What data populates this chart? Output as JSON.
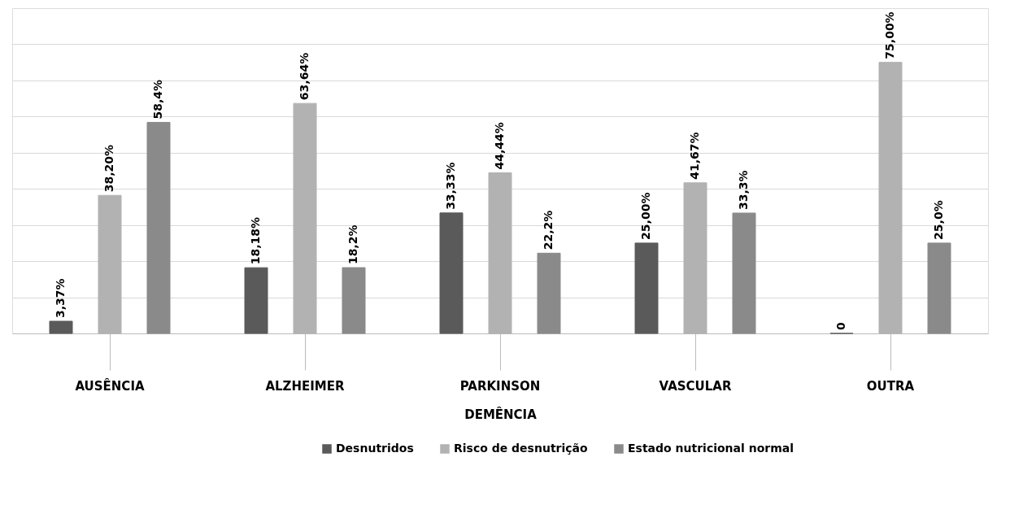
{
  "chart_data": {
    "type": "bar",
    "xlabel": "DEMÊNCIA",
    "categories": [
      "AUSÊNCIA",
      "ALZHEIMER",
      "PARKINSON",
      "VASCULAR",
      "OUTRA"
    ],
    "series": [
      {
        "name": "Desnutridos",
        "color": "#5a5a5a",
        "values": [
          3.37,
          18.18,
          33.33,
          25.0,
          0
        ],
        "value_labels": [
          "3,37%",
          "18,18%",
          "33,33%",
          "25,00%",
          "0"
        ]
      },
      {
        "name": "Risco de desnutrição",
        "color": "#b2b2b2",
        "values": [
          38.2,
          63.64,
          44.44,
          41.67,
          75.0
        ],
        "value_labels": [
          "38,20%",
          "63,64%",
          "44,44%",
          "41,67%",
          "75,00%"
        ]
      },
      {
        "name": "Estado nutricional normal",
        "color": "#8a8a8a",
        "values": [
          58.4,
          18.2,
          22.2,
          33.3,
          25.0
        ],
        "value_labels": [
          "58,4%",
          "18,2%",
          "22,2%",
          "33,3%",
          "25,0%"
        ]
      }
    ],
    "ylim": [
      0,
      90
    ],
    "yticks": [
      {
        "value": 0,
        "label": null
      },
      {
        "value": 10,
        "label": null
      },
      {
        "value": 20,
        "label": null
      },
      {
        "value": 30,
        "label": null
      },
      {
        "value": 40,
        "label": null
      },
      {
        "value": 50,
        "label": null
      },
      {
        "value": 60,
        "label": null
      },
      {
        "value": 70,
        "label": null
      },
      {
        "value": 80,
        "label": null
      }
    ],
    "tick_labels": "x",
    "grid": "y",
    "legend": "bottom"
  }
}
